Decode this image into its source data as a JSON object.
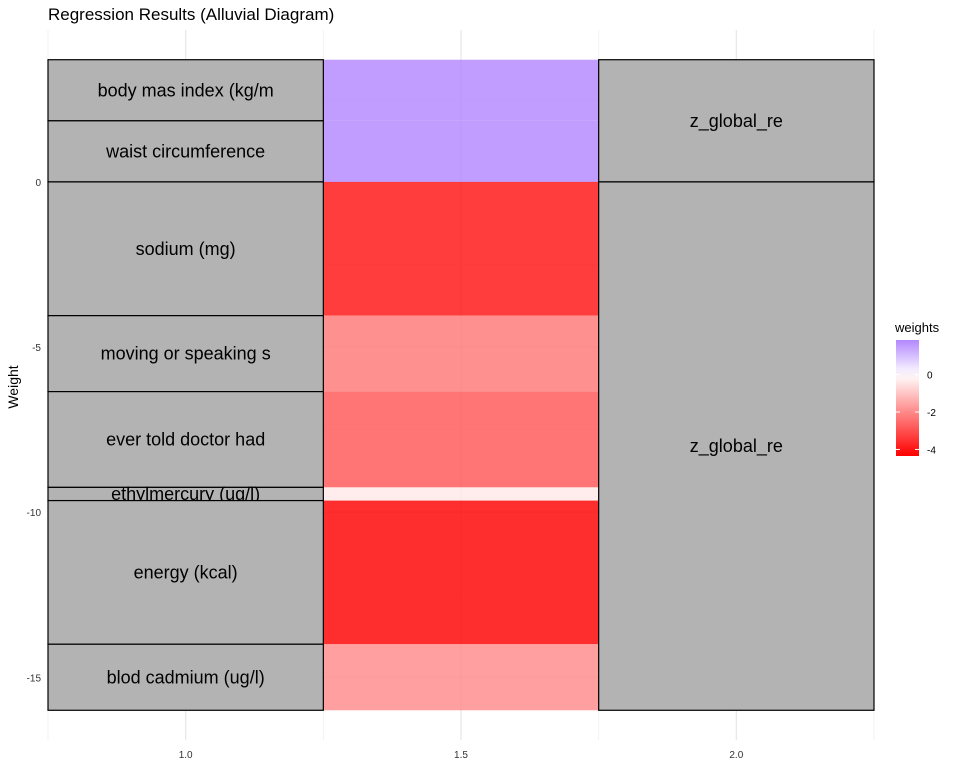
{
  "chart_data": {
    "type": "alluvial",
    "title": "Regression Results (Alluvial Diagram)",
    "xlabel": "",
    "ylabel": "Weight",
    "x_ticks": [
      "1.0",
      "1.5",
      "2.0"
    ],
    "y_ticks": [
      "0",
      "-5",
      "-10",
      "-15"
    ],
    "x_tick_values": [
      1.0,
      1.5,
      2.0
    ],
    "y_tick_values": [
      0,
      -5,
      -10,
      -15
    ],
    "xlim": [
      0.75,
      2.25
    ],
    "ylim": [
      -16.9,
      4.6
    ],
    "grid": true,
    "left_strata": [
      {
        "label": "body mas index (kg/m",
        "top": 3.7,
        "bottom": 1.85
      },
      {
        "label": "waist circumference",
        "top": 1.85,
        "bottom": 0.0
      },
      {
        "label": "sodium (mg)",
        "top": 0.0,
        "bottom": -4.05
      },
      {
        "label": "moving or speaking s",
        "top": -4.05,
        "bottom": -6.35
      },
      {
        "label": "ever told doctor had",
        "top": -6.35,
        "bottom": -9.25
      },
      {
        "label": "ethylmercury (ug/l)",
        "top": -9.25,
        "bottom": -9.65
      },
      {
        "label": "energy (kcal)",
        "top": -9.65,
        "bottom": -14.0
      },
      {
        "label": "blod cadmium (ug/l)",
        "top": -14.0,
        "bottom": -16.0
      }
    ],
    "right_strata": [
      {
        "label": "z_global_re",
        "top": 3.7,
        "bottom": 0.0
      },
      {
        "label": "z_global_re",
        "top": 0.0,
        "bottom": -16.0
      }
    ],
    "flows": [
      {
        "top": 3.7,
        "bottom": 1.85,
        "weight": 1.85
      },
      {
        "top": 1.85,
        "bottom": 0.0,
        "weight": 1.85
      },
      {
        "top": 0.0,
        "bottom": -4.05,
        "weight": -4.05
      },
      {
        "top": -4.05,
        "bottom": -6.35,
        "weight": -2.3
      },
      {
        "top": -6.35,
        "bottom": -9.25,
        "weight": -2.9
      },
      {
        "top": -9.25,
        "bottom": -9.65,
        "weight": -0.4
      },
      {
        "top": -9.65,
        "bottom": -14.0,
        "weight": -4.35
      },
      {
        "top": -14.0,
        "bottom": -16.0,
        "weight": -2.0
      }
    ],
    "legend": {
      "title": "weights",
      "ticks": [
        "0",
        "-2",
        "-4"
      ],
      "tick_values": [
        0,
        -2,
        -4
      ],
      "min": -4.35,
      "max": 1.85,
      "colors": {
        "low": "#ff0000",
        "mid": "#ffffff",
        "high": "#b388ff"
      }
    },
    "stratum_color": "#b3b3b3"
  }
}
